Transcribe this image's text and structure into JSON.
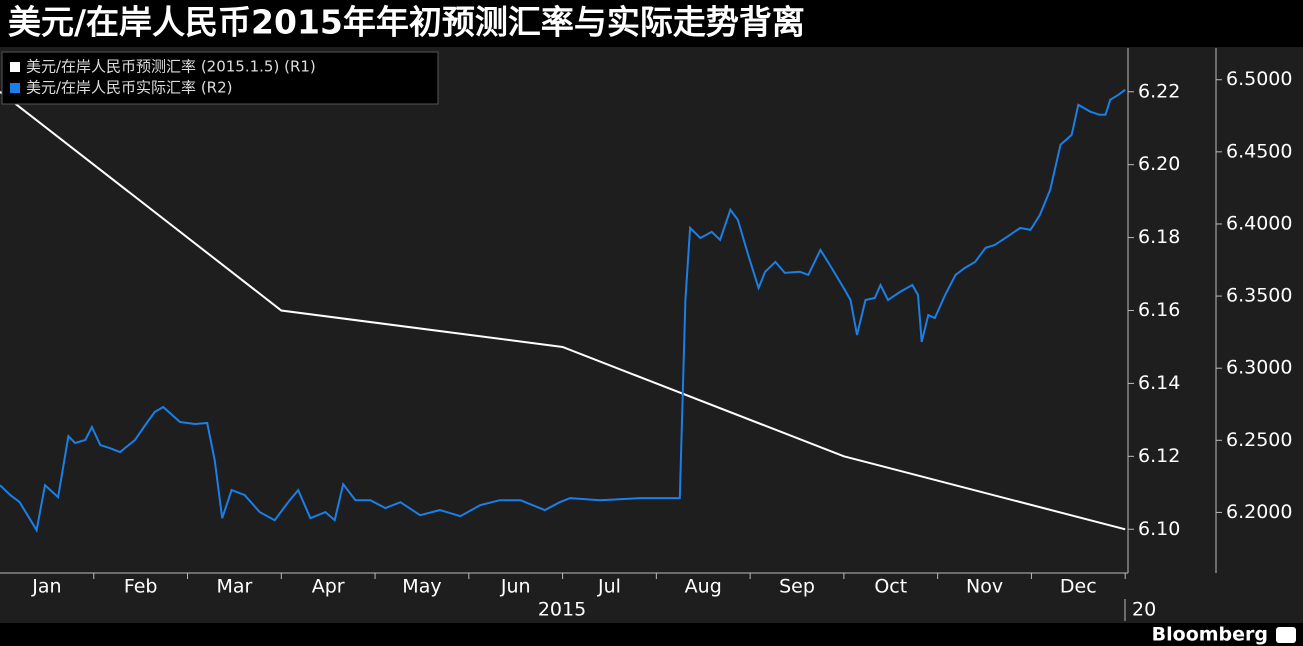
{
  "chart_data": {
    "type": "line",
    "title": "美元/在岸人民币2015年年初预测汇率与实际走势背离",
    "x_year_label": "2015",
    "x_next_year_label": "20",
    "source": "Bloomberg",
    "xlim": [
      0,
      12.03
    ],
    "xticks": [
      {
        "value": 0.5,
        "label": "Jan"
      },
      {
        "value": 1.5,
        "label": "Feb"
      },
      {
        "value": 2.5,
        "label": "Mar"
      },
      {
        "value": 3.5,
        "label": "Apr"
      },
      {
        "value": 4.5,
        "label": "May"
      },
      {
        "value": 5.5,
        "label": "Jun"
      },
      {
        "value": 6.5,
        "label": "Jul"
      },
      {
        "value": 7.5,
        "label": "Aug"
      },
      {
        "value": 8.5,
        "label": "Sep"
      },
      {
        "value": 9.5,
        "label": "Oct"
      },
      {
        "value": 10.5,
        "label": "Nov"
      },
      {
        "value": 11.5,
        "label": "Dec"
      }
    ],
    "x_boundaries": [
      1,
      2,
      3,
      4,
      5,
      6,
      7,
      8,
      9,
      10,
      11,
      12
    ],
    "ylim": [
      6.088,
      6.232
    ],
    "yticks": [
      {
        "value": 6.1,
        "label": "6.10"
      },
      6.12,
      6.14,
      6.16,
      6.18,
      {
        "value": 6.2,
        "label": "6.20"
      },
      6.22
    ],
    "y2lim": [
      6.158,
      6.522
    ],
    "y2ticks": [
      {
        "value": 6.2,
        "label": "6.2000"
      },
      {
        "value": 6.25,
        "label": "6.2500"
      },
      {
        "value": 6.3,
        "label": "6.3000"
      },
      {
        "value": 6.35,
        "label": "6.3500"
      },
      {
        "value": 6.4,
        "label": "6.4000"
      },
      {
        "value": 6.45,
        "label": "6.4500"
      },
      {
        "value": 6.5,
        "label": "6.5000"
      }
    ],
    "legend": "top-left",
    "series": [
      {
        "name": "美元/在岸人民币预测汇率 (2015.1.5) (R1)",
        "color": "#ffffff",
        "axis": "y",
        "x": [
          0,
          3,
          6,
          9,
          12
        ],
        "values": [
          6.22,
          6.16,
          6.15,
          6.12,
          6.1
        ]
      },
      {
        "name": "美元/在岸人民币实际汇率 (R2)",
        "color": "#1a7fe6",
        "axis": "y2",
        "x": [
          0,
          0.11,
          0.21,
          0.39,
          0.48,
          0.62,
          0.73,
          0.8,
          0.91,
          0.98,
          1.07,
          1.17,
          1.28,
          1.44,
          1.55,
          1.65,
          1.74,
          1.92,
          2.08,
          2.21,
          2.29,
          2.37,
          2.47,
          2.61,
          2.77,
          2.93,
          3.09,
          3.18,
          3.31,
          3.47,
          3.57,
          3.66,
          3.79,
          3.95,
          4.11,
          4.27,
          4.48,
          4.69,
          4.91,
          5.12,
          5.33,
          5.55,
          5.81,
          5.97,
          6.08,
          6.4,
          6.83,
          7.25,
          7.31,
          7.36,
          7.47,
          7.59,
          7.68,
          7.79,
          7.87,
          7.98,
          8.09,
          8.16,
          8.27,
          8.37,
          8.53,
          8.62,
          8.75,
          8.85,
          9.01,
          9.07,
          9.14,
          9.23,
          9.33,
          9.39,
          9.47,
          9.6,
          9.73,
          9.79,
          9.83,
          9.9,
          9.97,
          10.08,
          10.19,
          10.29,
          10.4,
          10.51,
          10.61,
          10.77,
          10.88,
          10.99,
          11.09,
          11.2,
          11.31,
          11.43,
          11.5,
          11.63,
          11.73,
          11.79,
          11.84,
          11.93,
          12
        ],
        "values": [
          6.2189,
          6.212,
          6.2071,
          6.1877,
          6.2189,
          6.2106,
          6.2529,
          6.2481,
          6.2502,
          6.2592,
          6.2467,
          6.2446,
          6.2418,
          6.2502,
          6.2606,
          6.2696,
          6.2731,
          6.2627,
          6.2613,
          6.262,
          6.2363,
          6.196,
          6.2155,
          6.212,
          6.2002,
          6.1946,
          6.2085,
          6.2155,
          6.196,
          6.2002,
          6.1946,
          6.2196,
          6.2085,
          6.2085,
          6.203,
          6.2071,
          6.1981,
          6.2016,
          6.1974,
          6.205,
          6.2085,
          6.2085,
          6.2016,
          6.2071,
          6.2099,
          6.2085,
          6.2099,
          6.2099,
          6.3473,
          6.3973,
          6.3903,
          6.3945,
          6.389,
          6.4098,
          6.4028,
          6.3785,
          6.3556,
          6.3668,
          6.3737,
          6.3661,
          6.3668,
          6.3647,
          6.382,
          6.3716,
          6.3543,
          6.3473,
          6.323,
          6.3473,
          6.3487,
          6.3577,
          6.3473,
          6.3529,
          6.3577,
          6.3508,
          6.3182,
          6.3369,
          6.3348,
          6.3508,
          6.3647,
          6.3695,
          6.3737,
          6.3834,
          6.3855,
          6.3924,
          6.3973,
          6.3959,
          6.4063,
          6.4237,
          6.4549,
          6.4618,
          6.4826,
          6.4778,
          6.4757,
          6.4757,
          6.4861,
          6.4896,
          6.4931
        ]
      }
    ]
  }
}
